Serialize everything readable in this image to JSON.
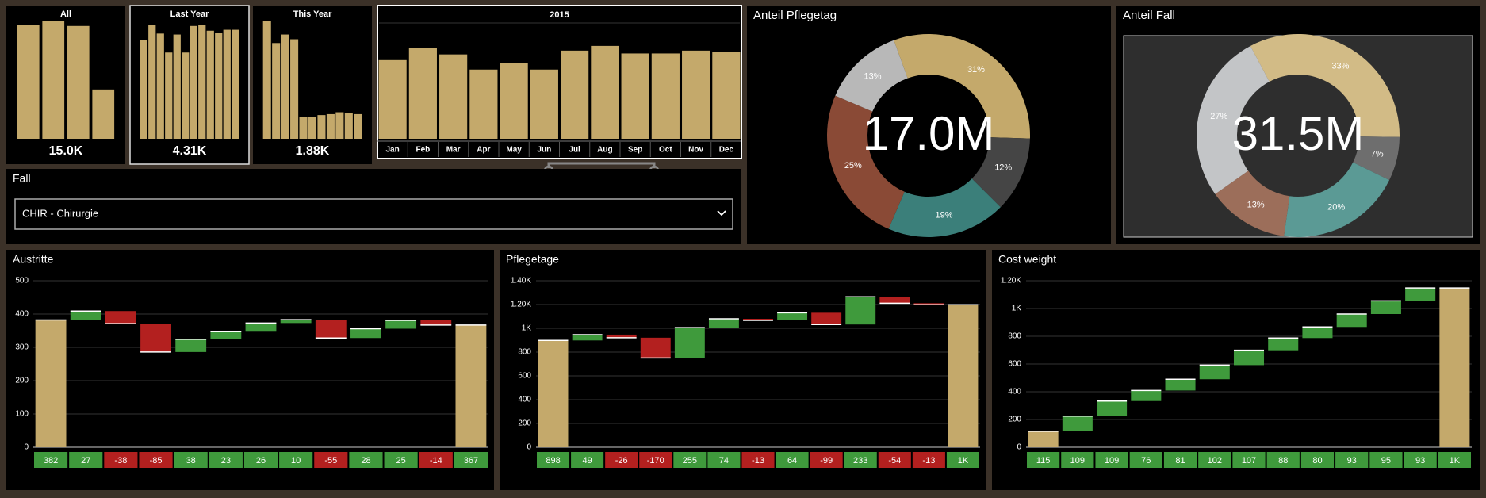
{
  "bar_color": "#c4a96b",
  "selectors": [
    {
      "title": "All",
      "values": [
        120,
        124,
        119,
        52
      ],
      "total": "15.0K"
    },
    {
      "title": "Last Year",
      "values": [
        104,
        120,
        111,
        91,
        110,
        91,
        119,
        120,
        114,
        112,
        115,
        115
      ],
      "total": "4.31K"
    },
    {
      "title": "This Year",
      "values": [
        124,
        101,
        110,
        105,
        23,
        23,
        25,
        26,
        28,
        27,
        26
      ],
      "total": "1.88K"
    }
  ],
  "months_chart": {
    "title": "2015",
    "categories": [
      "Jan",
      "Feb",
      "Mar",
      "Apr",
      "May",
      "Jun",
      "Jul",
      "Aug",
      "Sep",
      "Oct",
      "Nov",
      "Dec"
    ],
    "values": [
      83,
      96,
      89,
      73,
      80,
      73,
      93,
      98,
      90,
      90,
      93,
      92
    ]
  },
  "filter": {
    "label": "Fall",
    "selected": "CHIR - Chirurgie"
  },
  "donuts": [
    {
      "title": "Anteil Pflegetag",
      "center_label": "17.0M",
      "values": [
        31,
        12,
        19,
        25,
        13
      ],
      "value_labels": [
        "31%",
        "12%",
        "19%",
        "25%",
        "13%"
      ],
      "colors": [
        "#c4a96b",
        "#454545",
        "#3b7f7a",
        "#8a4a36",
        "#b8b8b8"
      ]
    },
    {
      "title": "Anteil Fall",
      "center_label": "31.5M",
      "values": [
        33,
        7,
        20,
        13,
        27
      ],
      "value_labels": [
        "33%",
        "7%",
        "20%",
        "13%",
        "27%"
      ],
      "colors": [
        "#d2bb86",
        "#6e6e6e",
        "#5b9a95",
        "#9c6e5a",
        "#c3c5c7"
      ]
    }
  ],
  "waterfalls": [
    {
      "title": "Austritte",
      "start": 382,
      "changes": [
        27,
        -38,
        -85,
        38,
        23,
        26,
        10,
        -55,
        28,
        25,
        -14
      ],
      "end": 367,
      "ylim": [
        0,
        500
      ],
      "yticks": [
        0,
        100,
        200,
        300,
        400,
        500
      ]
    },
    {
      "title": "Pflegetage",
      "start": 898,
      "changes": [
        49,
        -26,
        -170,
        255,
        74,
        -13,
        64,
        -99,
        233,
        -54,
        -13
      ],
      "end": 1198,
      "end_label": "1K",
      "ylim": [
        0,
        1400
      ],
      "yticks": [
        0,
        200,
        400,
        600,
        800,
        {
          "value": 1000,
          "label": "1K"
        },
        {
          "value": 1200,
          "label": "1.20K"
        },
        {
          "value": 1400,
          "label": "1.40K"
        }
      ]
    },
    {
      "title": "Cost weight",
      "start": 115,
      "changes": [
        109,
        109,
        76,
        81,
        102,
        107,
        88,
        80,
        93,
        95,
        93
      ],
      "end": 1148,
      "end_label": "1K",
      "ylim": [
        0,
        1200
      ],
      "yticks": [
        0,
        200,
        400,
        600,
        800,
        {
          "value": 1000,
          "label": "1K"
        },
        {
          "value": 1200,
          "label": "1.20K"
        }
      ]
    }
  ],
  "waterfall_colors": {
    "total": "#c4a96b",
    "increase": "#3f9a3c",
    "decrease": "#b3201f"
  }
}
